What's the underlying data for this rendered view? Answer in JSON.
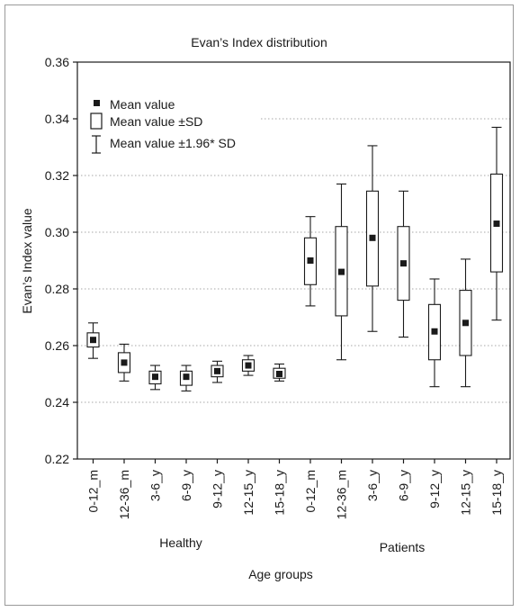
{
  "chart_data": {
    "type": "boxplot",
    "title": "Evan’s Index distribution",
    "ylabel": "Evan’s Index value",
    "xlabel": "Age groups",
    "ylim": [
      0.22,
      0.36
    ],
    "yticks": [
      "0.22",
      "0.24",
      "0.26",
      "0.28",
      "0.30",
      "0.32",
      "0.34",
      "0.36"
    ],
    "categories": [
      "0-12_m",
      "12-36_m",
      "3-6_y",
      "6-9_y",
      "9-12_y",
      "12-15_y",
      "15-18_y",
      "0-12_m",
      "12-36_m",
      "3-6_y",
      "6-9_y",
      "9-12_y",
      "12-15_y",
      "15-18_y"
    ],
    "group_labels": [
      "Healthy",
      "Patients"
    ],
    "legend": {
      "placement": "top-left",
      "items": [
        "Mean value",
        "Mean value ±SD",
        "Mean value ±1.96* SD"
      ]
    },
    "grid": "dotted horizontal",
    "series": [
      {
        "group": "Healthy",
        "boxes": [
          {
            "category": "0-12_m",
            "mean": 0.262,
            "sd_low": 0.2595,
            "sd_high": 0.2645,
            "ci_low": 0.2555,
            "ci_high": 0.268
          },
          {
            "category": "12-36_m",
            "mean": 0.254,
            "sd_low": 0.2505,
            "sd_high": 0.2575,
            "ci_low": 0.2475,
            "ci_high": 0.2605
          },
          {
            "category": "3-6_y",
            "mean": 0.249,
            "sd_low": 0.2465,
            "sd_high": 0.251,
            "ci_low": 0.2445,
            "ci_high": 0.253
          },
          {
            "category": "6-9_y",
            "mean": 0.249,
            "sd_low": 0.246,
            "sd_high": 0.251,
            "ci_low": 0.244,
            "ci_high": 0.253
          },
          {
            "category": "9-12_y",
            "mean": 0.251,
            "sd_low": 0.249,
            "sd_high": 0.253,
            "ci_low": 0.247,
            "ci_high": 0.2545
          },
          {
            "category": "12-15_y",
            "mean": 0.253,
            "sd_low": 0.251,
            "sd_high": 0.255,
            "ci_low": 0.2495,
            "ci_high": 0.2565
          },
          {
            "category": "15-18_y",
            "mean": 0.25,
            "sd_low": 0.2485,
            "sd_high": 0.252,
            "ci_low": 0.2475,
            "ci_high": 0.2535
          }
        ]
      },
      {
        "group": "Patients",
        "boxes": [
          {
            "category": "0-12_m",
            "mean": 0.29,
            "sd_low": 0.2815,
            "sd_high": 0.298,
            "ci_low": 0.274,
            "ci_high": 0.3055
          },
          {
            "category": "12-36_m",
            "mean": 0.286,
            "sd_low": 0.2705,
            "sd_high": 0.302,
            "ci_low": 0.255,
            "ci_high": 0.317
          },
          {
            "category": "3-6_y",
            "mean": 0.298,
            "sd_low": 0.281,
            "sd_high": 0.3145,
            "ci_low": 0.265,
            "ci_high": 0.3305
          },
          {
            "category": "6-9_y",
            "mean": 0.289,
            "sd_low": 0.276,
            "sd_high": 0.302,
            "ci_low": 0.263,
            "ci_high": 0.3145
          },
          {
            "category": "9-12_y",
            "mean": 0.265,
            "sd_low": 0.255,
            "sd_high": 0.2745,
            "ci_low": 0.2455,
            "ci_high": 0.2835
          },
          {
            "category": "12-15_y",
            "mean": 0.268,
            "sd_low": 0.2565,
            "sd_high": 0.2795,
            "ci_low": 0.2455,
            "ci_high": 0.2905
          },
          {
            "category": "15-18_y",
            "mean": 0.303,
            "sd_low": 0.286,
            "sd_high": 0.3205,
            "ci_low": 0.269,
            "ci_high": 0.337
          }
        ]
      }
    ]
  }
}
